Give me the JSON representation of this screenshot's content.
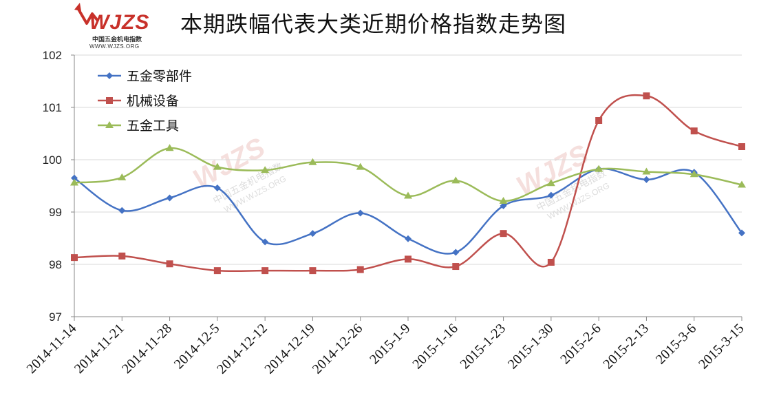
{
  "logo": {
    "mark": "WJZS",
    "subtitle": "中国五金机电指数",
    "url": "WWW.WJZS.ORG"
  },
  "colors": {
    "series": [
      "#4472c4",
      "#c0504d",
      "#9bbb59"
    ],
    "grid": "#d9d9d9",
    "axis": "#888888",
    "logo": "#c8312a"
  },
  "chart_data": {
    "type": "line",
    "title": "本期跌幅代表大类近期价格指数走势图",
    "xlabel": "",
    "ylabel": "",
    "ylim": [
      97,
      102
    ],
    "yticks": [
      97,
      98,
      99,
      100,
      101,
      102
    ],
    "grid": true,
    "legend": "top-left",
    "smooth": true,
    "categories": [
      "2014-11-14",
      "2014-11-21",
      "2014-11-28",
      "2014-12-5",
      "2014-12-12",
      "2014-12-19",
      "2014-12-26",
      "2015-1-9",
      "2015-1-16",
      "2015-1-23",
      "2015-1-30",
      "2015-2-6",
      "2015-2-13",
      "2015-3-6",
      "2015-3-15"
    ],
    "series": [
      {
        "name": "五金零部件",
        "marker": "diamond",
        "values": [
          99.65,
          99.03,
          99.27,
          99.46,
          98.43,
          98.59,
          98.98,
          98.49,
          98.23,
          99.12,
          99.32,
          99.82,
          99.62,
          99.76,
          98.6
        ]
      },
      {
        "name": "机械设备",
        "marker": "square",
        "values": [
          98.13,
          98.16,
          98.01,
          97.88,
          97.88,
          97.88,
          97.9,
          98.1,
          97.96,
          98.59,
          98.04,
          100.75,
          101.22,
          100.55,
          100.25
        ]
      },
      {
        "name": "五金工具",
        "marker": "triangle",
        "values": [
          99.56,
          99.66,
          100.22,
          99.86,
          99.8,
          99.95,
          99.86,
          99.31,
          99.6,
          99.21,
          99.55,
          99.82,
          99.77,
          99.72,
          99.52
        ]
      }
    ]
  }
}
